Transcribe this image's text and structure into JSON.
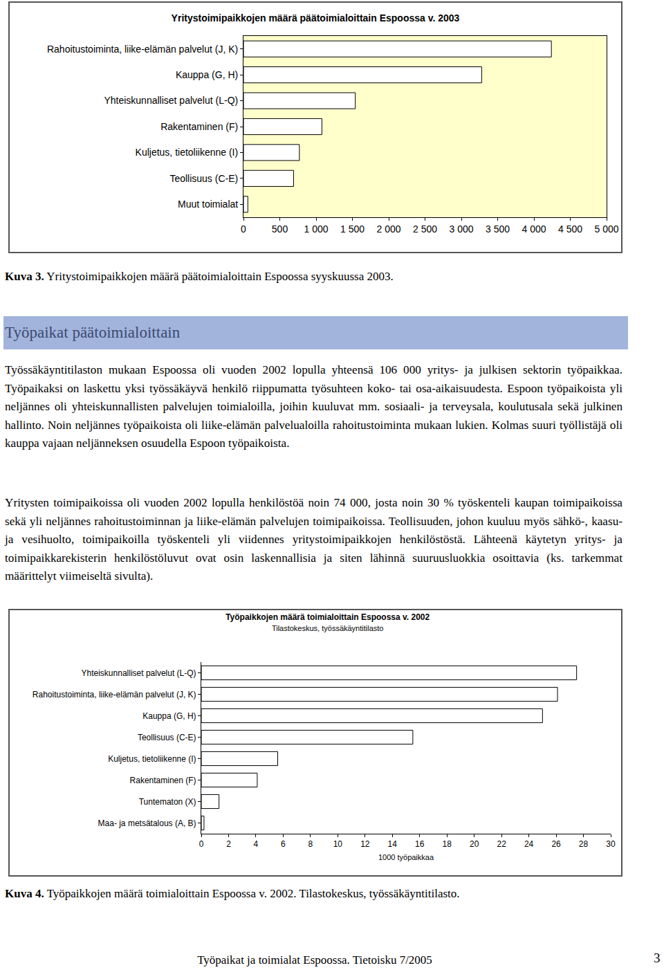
{
  "chart_data": [
    {
      "type": "bar",
      "orientation": "horizontal",
      "title": "Yritystoimipaikkojen määrä päätoimialoittain Espoossa v. 2003",
      "categories": [
        "Rahoitustoiminta, liike-elämän palvelut (J, K)",
        "Kauppa (G, H)",
        "Yhteiskunnalliset palvelut (L-Q)",
        "Rakentaminen (F)",
        "Kuljetus, tietoliikenne (I)",
        "Teollisuus (C-E)",
        "Muut toimialat"
      ],
      "values": [
        4240,
        3280,
        1540,
        1080,
        770,
        690,
        60
      ],
      "color": "#ffffff",
      "xlim": [
        0,
        5000
      ],
      "xticks": [
        0,
        500,
        {
          "value": 1000,
          "label": "1 000"
        },
        {
          "value": 1500,
          "label": "1 500"
        },
        {
          "value": 2000,
          "label": "2 000"
        },
        {
          "value": 2500,
          "label": "2 500"
        },
        {
          "value": 3000,
          "label": "3 000"
        },
        {
          "value": 3500,
          "label": "3 500"
        },
        {
          "value": 4000,
          "label": "4 000"
        },
        {
          "value": 4500,
          "label": "4 500"
        },
        {
          "value": 5000,
          "label": "5 000"
        }
      ],
      "grid": false
    },
    {
      "type": "bar",
      "orientation": "horizontal",
      "title": "Työpaikkojen määrä toimialoittain Espoossa v. 2002",
      "subtitle": "Tilastokeskus, työssäkäyntitilasto",
      "x_label": "1000 työpaikkaa",
      "categories": [
        "Yhteiskunnalliset palvelut (L-Q)",
        "Rahoitustoiminta, liike-elämän palvelut (J, K)",
        "Kauppa (G, H)",
        "Teollisuus (C-E)",
        "Kuljetus, tietoliikenne (I)",
        "Rakentaminen (F)",
        "Tuntematon (X)",
        "Maa- ja metsätalous (A, B)"
      ],
      "values": [
        27.5,
        26.1,
        25.0,
        15.5,
        5.6,
        4.1,
        1.3,
        0.2
      ],
      "color": "#ffffff",
      "xlim": [
        0,
        30
      ],
      "xticks": [
        0,
        2,
        4,
        6,
        8,
        10,
        12,
        14,
        16,
        18,
        20,
        22,
        24,
        26,
        28,
        30
      ],
      "grid": false
    }
  ],
  "document": {
    "caption_3": {
      "label": "Kuva 3.",
      "text": "Yritystoimipaikkojen määrä päätoimialoittain Espoossa syyskuussa 2003."
    },
    "heading": "Työpaikat päätoimialoittain",
    "paragraphs": [
      "Työssäkäyntitilaston mukaan Espoossa oli vuoden 2002 lopulla yhteensä 106 000 yritys- ja julkisen sektorin työpaikkaa. Työpaikaksi on laskettu yksi työssäkäyvä henkilö riippumatta työsuhteen koko- tai osa-aikaisuudesta. Espoon työpaikoista yli neljännes oli yhteiskunnallisten palvelujen toimialoilla, joihin kuuluvat mm. sosiaali- ja terveysala, koulutusala sekä julkinen hallinto. Noin neljännes työpaikoista oli liike-elämän palvelualoilla rahoitustoiminta mukaan lukien. Kolmas suuri työllistäjä oli kauppa vajaan neljänneksen osuudella Espoon työpaikoista.",
      "Yritysten toimipaikoissa oli vuoden 2002 lopulla henkilöstöä noin 74 000, josta noin 30 % työskenteli kaupan toimipaikoissa sekä yli neljännes rahoitustoiminnan ja liike-elämän palvelujen toimipaikoissa. Teollisuuden, johon kuuluu myös sähkö-, kaasu- ja vesihuolto, toimipaikoilla työskenteli yli viidennes yritystoimipaikkojen henkilöstöstä. Lähteenä käytetyn yritys- ja toimipaikkarekisterin henkilöstöluvut ovat osin laskennallisia ja siten lähinnä suuruusluokkia osoittavia (ks. tarkemmat määrittelyt viimeiseltä sivulta)."
    ],
    "caption_4": {
      "label": "Kuva 4.",
      "text": "Työpaikkojen määrä toimialoittain Espoossa v. 2002. Tilastokeskus, työssäkäyntitilasto."
    },
    "footer": {
      "text": "Työpaikat ja toimialat Espoossa. Tietoisku 7/2005",
      "page": 3
    }
  }
}
